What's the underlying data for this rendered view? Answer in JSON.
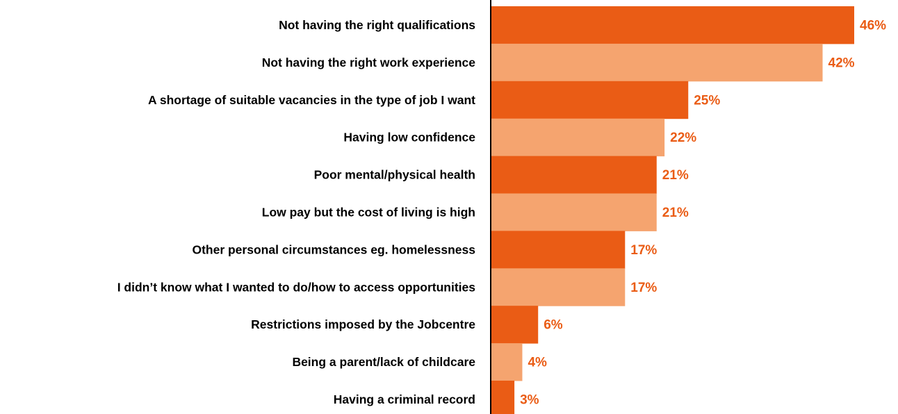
{
  "chart_data": {
    "type": "bar",
    "orientation": "horizontal",
    "categories": [
      "Not having the right qualifications",
      "Not having the right work experience",
      "A shortage of suitable vacancies in the type of job I want",
      "Having low confidence",
      "Poor mental/physical health",
      "Low pay but the cost of living is high",
      "Other personal circumstances eg. homelessness",
      "I didn’t know what I wanted to do/how to access opportunities",
      "Restrictions imposed by the Jobcentre",
      "Being a parent/lack of childcare",
      "Having a criminal record"
    ],
    "values": [
      46,
      42,
      25,
      22,
      21,
      21,
      17,
      17,
      6,
      4,
      3
    ],
    "value_labels": [
      "46%",
      "42%",
      "25%",
      "22%",
      "21%",
      "21%",
      "17%",
      "17%",
      "6%",
      "4%",
      "3%"
    ],
    "unit": "%",
    "xlim": [
      0,
      46
    ],
    "grid": false,
    "legend": "none",
    "colors": {
      "bar_dark": "#EA5C15",
      "bar_light": "#F5A46F",
      "value_label": "#EA5C15",
      "axis": "#000000",
      "category_label": "#000000"
    }
  }
}
